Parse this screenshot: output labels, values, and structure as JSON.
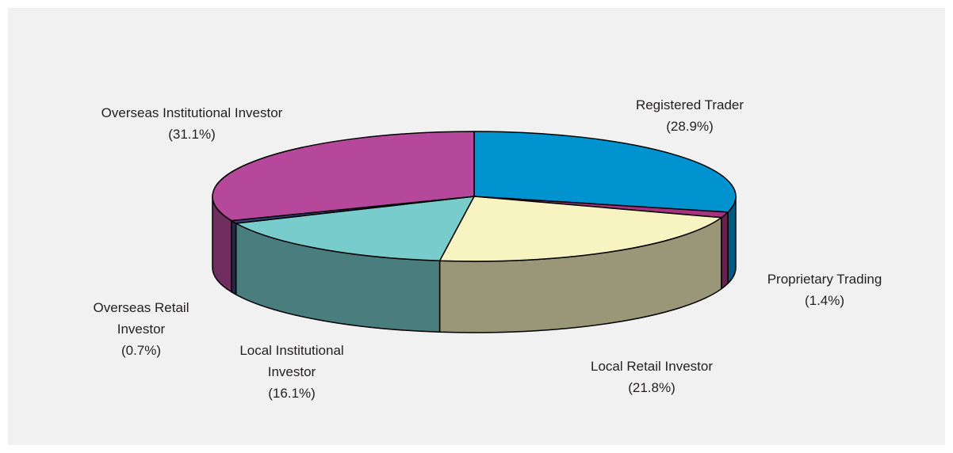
{
  "chart_data": {
    "type": "pie",
    "categories": [
      "Registered Trader",
      "Proprietary Trading",
      "Local Retail Investor",
      "Local Institutional Investor",
      "Overseas Retail Investor",
      "Overseas Institutional Investor"
    ],
    "values": [
      28.9,
      1.4,
      21.8,
      16.1,
      0.7,
      31.1
    ],
    "value_labels": [
      "(28.9%)",
      "(1.4%)",
      "(21.8%)",
      "(16.1%)",
      "(0.7%)",
      "(31.1%)"
    ],
    "colors": [
      "#0093d0",
      "#a6337f",
      "#f8f4c1",
      "#78cccb",
      "#3a3f78",
      "#b5489a"
    ]
  }
}
